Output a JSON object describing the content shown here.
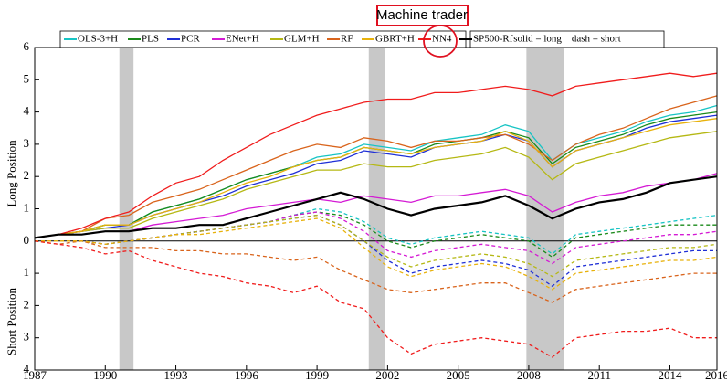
{
  "chart_data": {
    "type": "line",
    "annotation": "Machine trader",
    "note": "solid = long    dash = short",
    "ylabel_long": "Long Position",
    "ylabel_short": "Short Position",
    "x": [
      1987,
      1988,
      1989,
      1990,
      1991,
      1992,
      1993,
      1994,
      1995,
      1996,
      1997,
      1998,
      1999,
      2000,
      2001,
      2002,
      2003,
      2004,
      2005,
      2006,
      2007,
      2008,
      2009,
      2010,
      2011,
      2012,
      2013,
      2014,
      2015,
      2016
    ],
    "xlim": [
      1987,
      2016
    ],
    "xticks": [
      1987,
      1990,
      1993,
      1996,
      1999,
      2002,
      2005,
      2008,
      2011,
      2014,
      2016
    ],
    "ylim": [
      -4,
      6
    ],
    "yticks": [
      {
        "value": -4,
        "label": "4"
      },
      {
        "value": -3,
        "label": "3"
      },
      {
        "value": -2,
        "label": "2"
      },
      {
        "value": -1,
        "label": "1"
      },
      0,
      1,
      2,
      3,
      4,
      5,
      6
    ],
    "recessions": [
      [
        1990.6,
        1991.2
      ],
      [
        2001.2,
        2001.9
      ],
      [
        2007.9,
        2009.5
      ]
    ],
    "series": [
      {
        "name": "OLS-3+H",
        "color": "#17c4c4",
        "values": [
          0.1,
          0.2,
          0.3,
          0.5,
          0.5,
          0.9,
          1.1,
          1.3,
          1.6,
          1.9,
          2.1,
          2.3,
          2.6,
          2.7,
          3.0,
          2.9,
          2.8,
          3.1,
          3.2,
          3.3,
          3.6,
          3.4,
          2.5,
          3.0,
          3.2,
          3.4,
          3.7,
          3.9,
          4.0,
          4.2
        ],
        "short_values": [
          0,
          0,
          0,
          -0.1,
          0,
          0.1,
          0.2,
          0.3,
          0.4,
          0.5,
          0.6,
          0.8,
          1.0,
          0.9,
          0.6,
          0.1,
          -0.1,
          0.1,
          0.2,
          0.3,
          0.2,
          0.1,
          -0.4,
          0.2,
          0.3,
          0.4,
          0.5,
          0.6,
          0.7,
          0.8
        ]
      },
      {
        "name": "PLS",
        "color": "#1a8a1a",
        "values": [
          0.1,
          0.2,
          0.3,
          0.5,
          0.5,
          0.9,
          1.1,
          1.3,
          1.6,
          1.9,
          2.1,
          2.3,
          2.5,
          2.6,
          2.9,
          2.8,
          2.7,
          3.0,
          3.1,
          3.2,
          3.4,
          3.2,
          2.4,
          2.9,
          3.1,
          3.3,
          3.6,
          3.8,
          3.9,
          4.0
        ],
        "short_values": [
          0,
          0,
          0,
          -0.1,
          0,
          0.1,
          0.2,
          0.3,
          0.4,
          0.5,
          0.6,
          0.8,
          0.9,
          0.8,
          0.5,
          0,
          -0.2,
          0,
          0.1,
          0.2,
          0.1,
          0,
          -0.5,
          0.1,
          0.2,
          0.3,
          0.4,
          0.5,
          0.5,
          0.5
        ]
      },
      {
        "name": "PCR",
        "color": "#1f2fd6",
        "values": [
          0.1,
          0.2,
          0.3,
          0.4,
          0.5,
          0.8,
          1.0,
          1.2,
          1.4,
          1.7,
          1.9,
          2.1,
          2.4,
          2.5,
          2.8,
          2.7,
          2.6,
          2.9,
          3.0,
          3.1,
          3.3,
          3.1,
          2.3,
          2.8,
          3.0,
          3.2,
          3.5,
          3.7,
          3.8,
          3.9
        ],
        "short_values": [
          0,
          0,
          0,
          -0.1,
          0,
          0.1,
          0.2,
          0.3,
          0.4,
          0.5,
          0.6,
          0.7,
          0.8,
          0.5,
          0,
          -0.6,
          -1.0,
          -0.8,
          -0.7,
          -0.6,
          -0.7,
          -0.9,
          -1.4,
          -0.8,
          -0.7,
          -0.6,
          -0.5,
          -0.4,
          -0.3,
          -0.3
        ]
      },
      {
        "name": "ENet+H",
        "color": "#d41ad4",
        "values": [
          0.1,
          0.2,
          0.2,
          0.3,
          0.3,
          0.5,
          0.6,
          0.7,
          0.8,
          1.0,
          1.1,
          1.2,
          1.3,
          1.2,
          1.4,
          1.3,
          1.2,
          1.4,
          1.4,
          1.5,
          1.6,
          1.4,
          0.9,
          1.2,
          1.4,
          1.5,
          1.7,
          1.8,
          1.9,
          2.1
        ],
        "short_values": [
          0,
          0,
          0,
          -0.1,
          0,
          0.1,
          0.2,
          0.3,
          0.4,
          0.5,
          0.6,
          0.8,
          0.9,
          0.7,
          0.3,
          -0.3,
          -0.5,
          -0.3,
          -0.2,
          -0.1,
          -0.2,
          -0.3,
          -0.7,
          -0.2,
          -0.1,
          0,
          0.1,
          0.2,
          0.2,
          0.3
        ]
      },
      {
        "name": "GLM+H",
        "color": "#b5b814",
        "values": [
          0.1,
          0.2,
          0.3,
          0.4,
          0.4,
          0.7,
          0.9,
          1.1,
          1.3,
          1.6,
          1.8,
          2.0,
          2.2,
          2.2,
          2.4,
          2.3,
          2.3,
          2.5,
          2.6,
          2.7,
          2.9,
          2.6,
          1.9,
          2.4,
          2.6,
          2.8,
          3.0,
          3.2,
          3.3,
          3.4
        ],
        "short_values": [
          0,
          0,
          0,
          -0.1,
          0,
          0.1,
          0.2,
          0.3,
          0.4,
          0.5,
          0.6,
          0.7,
          0.8,
          0.5,
          0,
          -0.5,
          -0.8,
          -0.6,
          -0.5,
          -0.4,
          -0.5,
          -0.7,
          -1.1,
          -0.6,
          -0.5,
          -0.4,
          -0.3,
          -0.2,
          -0.2,
          -0.1
        ]
      },
      {
        "name": "RF",
        "color": "#d9641c",
        "values": [
          0.1,
          0.2,
          0.3,
          0.7,
          0.8,
          1.2,
          1.4,
          1.6,
          1.9,
          2.2,
          2.5,
          2.8,
          3.0,
          2.9,
          3.2,
          3.1,
          2.9,
          3.1,
          3.1,
          3.2,
          3.3,
          3.0,
          2.5,
          3.0,
          3.3,
          3.5,
          3.8,
          4.1,
          4.3,
          4.5
        ],
        "short_values": [
          0,
          -0.1,
          0,
          -0.2,
          -0.2,
          -0.2,
          -0.3,
          -0.3,
          -0.4,
          -0.4,
          -0.5,
          -0.6,
          -0.5,
          -0.9,
          -1.2,
          -1.5,
          -1.6,
          -1.5,
          -1.4,
          -1.3,
          -1.3,
          -1.6,
          -1.9,
          -1.5,
          -1.4,
          -1.3,
          -1.2,
          -1.1,
          -1.0,
          -1.0
        ]
      },
      {
        "name": "GBRT+H",
        "color": "#e8b20c",
        "values": [
          0.1,
          0.2,
          0.3,
          0.5,
          0.5,
          0.8,
          1.0,
          1.2,
          1.5,
          1.8,
          2.0,
          2.3,
          2.5,
          2.6,
          2.9,
          2.8,
          2.7,
          2.9,
          3.0,
          3.1,
          3.4,
          3.1,
          2.3,
          2.8,
          3.0,
          3.2,
          3.4,
          3.6,
          3.7,
          3.8
        ],
        "short_values": [
          0,
          0,
          0,
          -0.1,
          0,
          0.1,
          0.2,
          0.2,
          0.3,
          0.4,
          0.5,
          0.6,
          0.7,
          0.4,
          -0.2,
          -0.8,
          -1.1,
          -0.9,
          -0.8,
          -0.7,
          -0.8,
          -1.1,
          -1.5,
          -1.0,
          -0.9,
          -0.8,
          -0.7,
          -0.6,
          -0.6,
          -0.5
        ]
      },
      {
        "name": "NN4",
        "color": "#f01c1c",
        "values": [
          0.1,
          0.2,
          0.4,
          0.7,
          0.9,
          1.4,
          1.8,
          2.0,
          2.5,
          2.9,
          3.3,
          3.6,
          3.9,
          4.1,
          4.3,
          4.4,
          4.4,
          4.6,
          4.6,
          4.7,
          4.8,
          4.7,
          4.5,
          4.8,
          4.9,
          5.0,
          5.1,
          5.2,
          5.1,
          5.2
        ],
        "short_values": [
          0,
          -0.1,
          -0.2,
          -0.4,
          -0.3,
          -0.6,
          -0.8,
          -1.0,
          -1.1,
          -1.3,
          -1.4,
          -1.6,
          -1.4,
          -1.9,
          -2.1,
          -3.0,
          -3.5,
          -3.2,
          -3.1,
          -3.0,
          -3.1,
          -3.2,
          -3.6,
          -3.0,
          -2.9,
          -2.8,
          -2.8,
          -2.7,
          -3.0,
          -3.0
        ]
      },
      {
        "name": "SP500-Rf",
        "color": "#000000",
        "values": [
          0.1,
          0.2,
          0.2,
          0.3,
          0.3,
          0.4,
          0.4,
          0.5,
          0.5,
          0.7,
          0.9,
          1.1,
          1.3,
          1.5,
          1.3,
          1.0,
          0.8,
          1.0,
          1.1,
          1.2,
          1.4,
          1.1,
          0.7,
          1.0,
          1.2,
          1.3,
          1.5,
          1.8,
          1.9,
          2.0
        ]
      }
    ]
  }
}
